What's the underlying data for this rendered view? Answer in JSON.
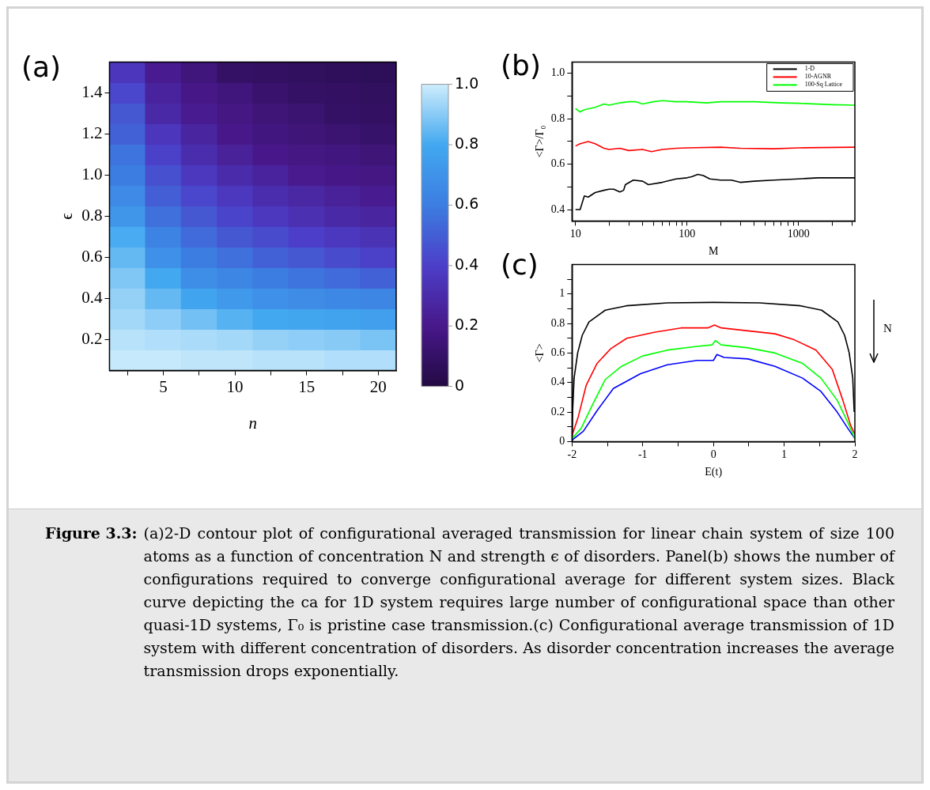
{
  "chart_data": [
    {
      "type": "heatmap",
      "title": "(a)",
      "xlabel": "n",
      "ylabel": "ϵ",
      "categories": [
        null,
        "5",
        null,
        "10",
        null,
        "15",
        null,
        "20"
      ],
      "y_categories": [
        null,
        "1.4",
        null,
        "1.2",
        null,
        "1.0",
        null,
        "0.8",
        null,
        "0.6",
        null,
        "0.4",
        null,
        "0.2",
        null
      ],
      "cells": [
        [
          0.36,
          0.22,
          0.16,
          0.1,
          0.09,
          0.08,
          0.07,
          0.06
        ],
        [
          0.43,
          0.26,
          0.19,
          0.16,
          0.12,
          0.1,
          0.09,
          0.08
        ],
        [
          0.48,
          0.29,
          0.22,
          0.18,
          0.15,
          0.13,
          0.1,
          0.09
        ],
        [
          0.51,
          0.36,
          0.27,
          0.2,
          0.17,
          0.15,
          0.13,
          0.11
        ],
        [
          0.57,
          0.41,
          0.31,
          0.25,
          0.2,
          0.18,
          0.17,
          0.15
        ],
        [
          0.6,
          0.46,
          0.37,
          0.3,
          0.26,
          0.21,
          0.19,
          0.18
        ],
        [
          0.66,
          0.5,
          0.43,
          0.37,
          0.31,
          0.28,
          0.25,
          0.22
        ],
        [
          0.72,
          0.56,
          0.48,
          0.42,
          0.37,
          0.33,
          0.29,
          0.27
        ],
        [
          0.81,
          0.63,
          0.54,
          0.48,
          0.44,
          0.4,
          0.37,
          0.34
        ],
        [
          0.85,
          0.69,
          0.6,
          0.56,
          0.51,
          0.48,
          0.44,
          0.41
        ],
        [
          0.89,
          0.8,
          0.68,
          0.64,
          0.6,
          0.57,
          0.54,
          0.51
        ],
        [
          0.92,
          0.85,
          0.78,
          0.73,
          0.69,
          0.67,
          0.65,
          0.64
        ],
        [
          0.94,
          0.91,
          0.87,
          0.83,
          0.8,
          0.79,
          0.77,
          0.76
        ],
        [
          0.97,
          0.96,
          0.95,
          0.94,
          0.92,
          0.91,
          0.9,
          0.88
        ],
        [
          0.99,
          0.99,
          0.98,
          0.98,
          0.97,
          0.97,
          0.96,
          0.96
        ]
      ],
      "clim": [
        0,
        1
      ],
      "cticks": [
        0,
        0.2,
        0.4,
        0.6,
        0.8,
        {
          "value": 1,
          "label": "1.0"
        }
      ]
    },
    {
      "type": "line",
      "title": "(b)",
      "xlabel": "M",
      "ylabel": "<Γ>/Γ₀",
      "log": "x",
      "legend": "top right",
      "xlim": [
        9.3,
        3200
      ],
      "xticks": [
        10,
        {
          "value": 20,
          "label": null
        },
        {
          "value": 30,
          "label": null
        },
        {
          "value": 40,
          "label": null
        },
        {
          "value": 50,
          "label": null
        },
        {
          "value": 60,
          "label": null
        },
        {
          "value": 70,
          "label": null
        },
        {
          "value": 80,
          "label": null
        },
        {
          "value": 90,
          "label": null
        },
        100,
        {
          "value": 200,
          "label": null
        },
        {
          "value": 300,
          "label": null
        },
        {
          "value": 400,
          "label": null
        },
        {
          "value": 500,
          "label": null
        },
        {
          "value": 600,
          "label": null
        },
        {
          "value": 700,
          "label": null
        },
        {
          "value": 800,
          "label": null
        },
        {
          "value": 900,
          "label": null
        },
        1000,
        {
          "value": 2000,
          "label": null
        },
        {
          "value": 3000,
          "label": null
        }
      ],
      "ylim": [
        0.35,
        1.05
      ],
      "yticks": [
        0.4,
        {
          "value": 0.5,
          "label": null
        },
        0.6,
        {
          "value": 0.7,
          "label": null
        },
        0.8,
        {
          "value": 0.9,
          "label": null
        },
        {
          "value": 1,
          "label": "1.0"
        }
      ],
      "series": [
        {
          "name": "1-D",
          "color": "#000000",
          "x": [
            10,
            11,
            12,
            13,
            15,
            18,
            20,
            22,
            25,
            27,
            28,
            33,
            40,
            45,
            60,
            80,
            100,
            110,
            125,
            140,
            160,
            200,
            250,
            300,
            400,
            600,
            1000,
            1500,
            3200
          ],
          "values": [
            0.4,
            0.4,
            0.46,
            0.455,
            0.475,
            0.485,
            0.49,
            0.49,
            0.478,
            0.485,
            0.51,
            0.53,
            0.525,
            0.51,
            0.52,
            0.535,
            0.54,
            0.545,
            0.555,
            0.55,
            0.535,
            0.53,
            0.53,
            0.52,
            0.525,
            0.53,
            0.535,
            0.54,
            0.54
          ]
        },
        {
          "name": "10-AGNR",
          "color": "#ff0000",
          "x": [
            10,
            11,
            13,
            15,
            18,
            20,
            25,
            30,
            40,
            48,
            60,
            80,
            100,
            200,
            300,
            600,
            1000,
            3200
          ],
          "values": [
            0.68,
            0.69,
            0.7,
            0.69,
            0.67,
            0.665,
            0.67,
            0.66,
            0.665,
            0.655,
            0.665,
            0.67,
            0.672,
            0.675,
            0.67,
            0.668,
            0.672,
            0.675
          ]
        },
        {
          "name": "100-Sq Lattice",
          "color": "#00ff00",
          "x": [
            10,
            11,
            12,
            15,
            18,
            20,
            25,
            30,
            35,
            40,
            50,
            60,
            80,
            100,
            150,
            200,
            300,
            400,
            700,
            1000,
            2000,
            3200
          ],
          "values": [
            0.845,
            0.83,
            0.84,
            0.85,
            0.865,
            0.86,
            0.87,
            0.875,
            0.875,
            0.865,
            0.875,
            0.88,
            0.875,
            0.875,
            0.87,
            0.875,
            0.875,
            0.875,
            0.87,
            0.868,
            0.862,
            0.86
          ]
        }
      ]
    },
    {
      "type": "line",
      "title": "(c)",
      "xlabel": "E(t)",
      "ylabel": "<Γ>",
      "annotations": [
        "N"
      ],
      "xlim": [
        -2,
        2
      ],
      "xticks": [
        -2,
        {
          "value": -1.5,
          "label": null
        },
        -1,
        {
          "value": -0.5,
          "label": null
        },
        0,
        {
          "value": 0.5,
          "label": null
        },
        1,
        {
          "value": 1.5,
          "label": null
        },
        2
      ],
      "ylim": [
        0,
        1.2
      ],
      "yticks": [
        0,
        {
          "value": 0.1,
          "label": null
        },
        0.2,
        {
          "value": 0.3,
          "label": null
        },
        0.4,
        {
          "value": 0.5,
          "label": null
        },
        0.6,
        {
          "value": 0.7,
          "label": null
        },
        0.8,
        {
          "value": 0.9,
          "label": null
        },
        1,
        {
          "value": 1.1,
          "label": null
        }
      ],
      "series": [
        {
          "color": "#000000",
          "x": [
            -2,
            -1.99,
            -1.97,
            -1.92,
            -1.855,
            -1.76,
            -1.53,
            -1.23,
            -0.65,
            0,
            0.65,
            1.23,
            1.53,
            1.76,
            1.855,
            1.92,
            1.97,
            1.99
          ],
          "values": [
            0.02,
            0.22,
            0.43,
            0.6,
            0.72,
            0.81,
            0.89,
            0.92,
            0.94,
            0.943,
            0.94,
            0.92,
            0.89,
            0.81,
            0.72,
            0.6,
            0.43,
            0.2
          ]
        },
        {
          "color": "#ff0000",
          "x": [
            -2,
            -1.91,
            -1.8,
            -1.645,
            -1.45,
            -1.225,
            -0.84,
            -0.46,
            -0.08,
            0.015,
            0.11,
            0.49,
            0.87,
            1.14,
            1.45,
            1.68,
            1.83,
            1.94,
            2
          ],
          "values": [
            0.04,
            0.17,
            0.38,
            0.53,
            0.63,
            0.7,
            0.74,
            0.77,
            0.77,
            0.79,
            0.77,
            0.75,
            0.73,
            0.69,
            0.62,
            0.49,
            0.28,
            0.11,
            0.05
          ]
        },
        {
          "color": "#00ff00",
          "x": [
            -2,
            -1.87,
            -1.72,
            -1.53,
            -1.3,
            -1.0,
            -0.65,
            -0.23,
            -0.02,
            0.03,
            0.11,
            0.49,
            0.87,
            1.26,
            1.52,
            1.75,
            1.9,
            2
          ],
          "values": [
            0.02,
            0.09,
            0.24,
            0.42,
            0.51,
            0.58,
            0.62,
            0.645,
            0.655,
            0.685,
            0.655,
            0.635,
            0.6,
            0.53,
            0.43,
            0.28,
            0.13,
            0.02
          ]
        },
        {
          "color": "#0000ff",
          "x": [
            -2,
            -1.84,
            -1.645,
            -1.415,
            -1.03,
            -0.65,
            -0.23,
            0,
            0.05,
            0.15,
            0.49,
            0.87,
            1.26,
            1.52,
            1.75,
            1.9,
            2
          ],
          "values": [
            0.01,
            0.07,
            0.21,
            0.36,
            0.46,
            0.52,
            0.55,
            0.55,
            0.59,
            0.57,
            0.56,
            0.51,
            0.43,
            0.34,
            0.2,
            0.09,
            0.02
          ]
        }
      ]
    },
    {
      "type": "other",
      "title": "Figure 3.3:",
      "annotations": [
        "(a)2-D contour plot of configurational averaged transmission for linear chain system of size 100 atoms as a function of concentration N and strength ϵ of disorders. Panel(b) shows the number of configurations required to converge configurational average for different system sizes. Black curve depicting the ca for 1D system requires large number of configurational space than other quasi-1D systems, Γ₀ is pristine case transmission.(c) Configurational average transmission of 1D system with different concentration of disorders. As disorder concentration increases the average transmission drops exponentially."
      ]
    }
  ]
}
